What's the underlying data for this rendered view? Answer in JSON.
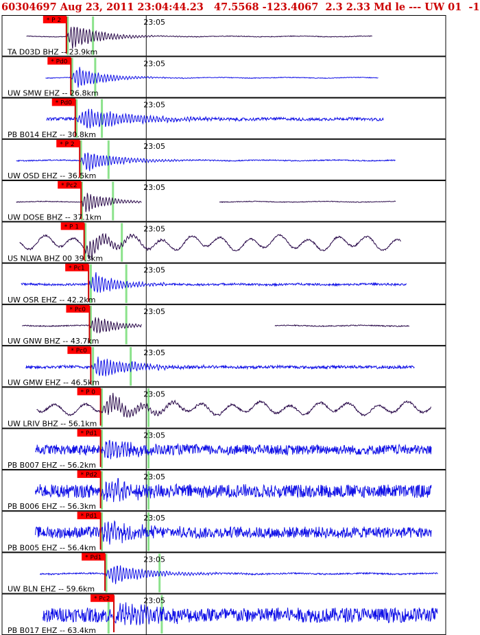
{
  "header": {
    "title": "60304697 Aug 23, 2011 23:04:44.23   47.5568 -123.4067  2.3 2.33 Md le --- UW 01  -1"
  },
  "colors": {
    "title": "#cc0000",
    "trace_blue": "#1010e6",
    "trace_dark": "#2a0a4a",
    "pick_flag": "#ff0000",
    "pick_line": "#cc0000",
    "theory_line": "#77dd77",
    "border": "#000000"
  },
  "chart_data": {
    "type": "line",
    "x_unit": "time",
    "panels": [
      {
        "channel": "TA D03D BHZ",
        "distance": "23.9km",
        "label": "TA D03D BHZ -- 23.9km",
        "pick": "P 2",
        "time_label": "23:05",
        "color": "dark",
        "amp": 0.12,
        "burst": 1.0,
        "burst_dur": 0.1,
        "noise": 0.02,
        "pick_t": 0.145,
        "green": [
          0.148,
          0.205
        ],
        "segments": [
          [
            0.055,
            0.835
          ]
        ],
        "long_period": false
      },
      {
        "channel": "UW SMW EHZ",
        "distance": "26.8km",
        "label": "UW SMW EHZ -- 26.8km",
        "pick": "Pd0",
        "time_label": "23:05",
        "color": "blue",
        "amp": 0.14,
        "burst": 0.85,
        "burst_dur": 0.1,
        "noise": 0.02,
        "pick_t": 0.155,
        "green": [
          0.158,
          0.21
        ],
        "segments": [
          [
            0.098,
            0.848
          ]
        ],
        "long_period": false
      },
      {
        "channel": "PB B014 EHZ",
        "distance": "30.8km",
        "label": "PB B014 EHZ -- 30.8km",
        "pick": "Pd0",
        "time_label": "23:05",
        "color": "blue",
        "amp": 0.14,
        "burst": 0.85,
        "burst_dur": 0.18,
        "noise": 0.08,
        "pick_t": 0.165,
        "green": [
          0.168,
          0.225
        ],
        "segments": [
          [
            0.1,
            0.86
          ]
        ],
        "long_period": false
      },
      {
        "channel": "UW OSD EHZ",
        "distance": "36.5km",
        "label": "UW OSD EHZ -- 36.5km",
        "pick": "P 2",
        "time_label": "23:05",
        "color": "blue",
        "amp": 0.12,
        "burst": 0.8,
        "burst_dur": 0.12,
        "noise": 0.03,
        "pick_t": 0.175,
        "green": [
          0.178,
          0.24
        ],
        "segments": [
          [
            0.032,
            0.887
          ]
        ],
        "long_period": false
      },
      {
        "channel": "UW DOSE BHZ",
        "distance": "37.1km",
        "label": "UW DOSE BHZ -- 37.1km",
        "pick": "Pc2",
        "time_label": "23:05",
        "color": "dark",
        "amp": 0.12,
        "burst": 0.85,
        "burst_dur": 0.08,
        "noise": 0.02,
        "pick_t": 0.178,
        "green": [
          0.18,
          0.25
        ],
        "segments": [
          [
            0.032,
            0.315
          ],
          [
            0.49,
            0.888
          ]
        ],
        "long_period": false
      },
      {
        "channel": "US NLWA BHZ 00",
        "distance": "39.3km",
        "label": "US NLWA BHZ 00 39.3km",
        "pick": "P 1",
        "time_label": "23:05",
        "color": "dark",
        "amp": 0.35,
        "burst": 0.9,
        "burst_dur": 0.08,
        "noise": 0.05,
        "pick_t": 0.185,
        "green": [
          0.188,
          0.27
        ],
        "segments": [
          [
            0.04,
            0.9
          ]
        ],
        "long_period": true
      },
      {
        "channel": "UW OSR EHZ",
        "distance": "42.2km",
        "label": "UW OSR EHZ -- 42.2km",
        "pick": "Pc1",
        "time_label": "23:05",
        "color": "blue",
        "amp": 0.14,
        "burst": 0.85,
        "burst_dur": 0.1,
        "noise": 0.06,
        "pick_t": 0.195,
        "green": [
          0.2,
          0.28
        ],
        "segments": [
          [
            0.043,
            0.912
          ]
        ],
        "long_period": false
      },
      {
        "channel": "UW GNW BHZ",
        "distance": "43.7km",
        "label": "UW GNW BHZ -- 43.7km",
        "pick": "Pc0",
        "time_label": "23:05",
        "color": "dark",
        "amp": 0.12,
        "burst": 0.8,
        "burst_dur": 0.08,
        "noise": 0.03,
        "pick_t": 0.197,
        "green": [
          0.2,
          0.28
        ],
        "segments": [
          [
            0.045,
            0.315
          ],
          [
            0.615,
            0.918
          ]
        ],
        "long_period": false
      },
      {
        "channel": "UW GMW EHZ",
        "distance": "46.5km",
        "label": "UW GMW EHZ -- 46.5km",
        "pick": "Pc0",
        "time_label": "23:05",
        "color": "blue",
        "amp": 0.13,
        "burst": 0.9,
        "burst_dur": 0.12,
        "noise": 0.08,
        "pick_t": 0.2,
        "green": [
          0.205,
          0.29
        ],
        "segments": [
          [
            0.053,
            0.93
          ]
        ],
        "long_period": false
      },
      {
        "channel": "UW LRIV BHZ",
        "distance": "56.1km",
        "label": "UW LRIV BHZ -- 56.1km",
        "pick": "P 0",
        "time_label": "23:05",
        "color": "dark",
        "amp": 0.3,
        "burst": 0.75,
        "burst_dur": 0.12,
        "noise": 0.06,
        "pick_t": 0.222,
        "green": [
          0.225,
          0.33
        ],
        "segments": [
          [
            0.078,
            0.968
          ]
        ],
        "long_period": true
      },
      {
        "channel": "PB B007 EHZ",
        "distance": "56.2km",
        "label": "PB B007 EHZ -- 56.2km",
        "pick": "Pd1",
        "time_label": "23:05",
        "color": "blue",
        "amp": 0.14,
        "burst": 0.85,
        "burst_dur": 0.1,
        "noise": 0.28,
        "pick_t": 0.222,
        "green": [
          0.225,
          0.33
        ],
        "segments": [
          [
            0.075,
            0.968
          ]
        ],
        "long_period": false
      },
      {
        "channel": "PB B006 EHZ",
        "distance": "56.3km",
        "label": "PB B006 EHZ -- 56.3km",
        "pick": "Pd2",
        "time_label": "23:05",
        "color": "blue",
        "amp": 0.14,
        "burst": 0.85,
        "burst_dur": 0.1,
        "noise": 0.38,
        "pick_t": 0.222,
        "green": [
          0.225,
          0.33
        ],
        "segments": [
          [
            0.075,
            0.968
          ]
        ],
        "long_period": false
      },
      {
        "channel": "PB B005 EHZ",
        "distance": "56.4km",
        "label": "PB B005 EHZ -- 56.4km",
        "pick": "Pd1",
        "time_label": "23:05",
        "color": "blue",
        "amp": 0.14,
        "burst": 0.8,
        "burst_dur": 0.1,
        "noise": 0.32,
        "pick_t": 0.222,
        "green": [
          0.225,
          0.33
        ],
        "segments": [
          [
            0.075,
            0.968
          ]
        ],
        "long_period": false
      },
      {
        "channel": "UW BLN EHZ",
        "distance": "59.6km",
        "label": "UW BLN EHZ -- 59.6km",
        "pick": "Pd1",
        "time_label": "23:05",
        "color": "blue",
        "amp": 0.12,
        "burst": 0.75,
        "burst_dur": 0.14,
        "noise": 0.04,
        "pick_t": 0.232,
        "green": [
          0.235,
          0.355
        ],
        "segments": [
          [
            0.085,
            0.982
          ]
        ],
        "long_period": false
      },
      {
        "channel": "PB B017 EHZ",
        "distance": "63.4km",
        "label": "PB B017 EHZ -- 63.4km",
        "pick": "Pc2",
        "time_label": "23:05",
        "color": "blue",
        "amp": 0.14,
        "burst": 0.85,
        "burst_dur": 0.1,
        "noise": 0.42,
        "pick_t": 0.252,
        "green": [
          0.24,
          0.36
        ],
        "segments": [
          [
            0.092,
            0.982
          ]
        ],
        "long_period": false
      }
    ]
  }
}
